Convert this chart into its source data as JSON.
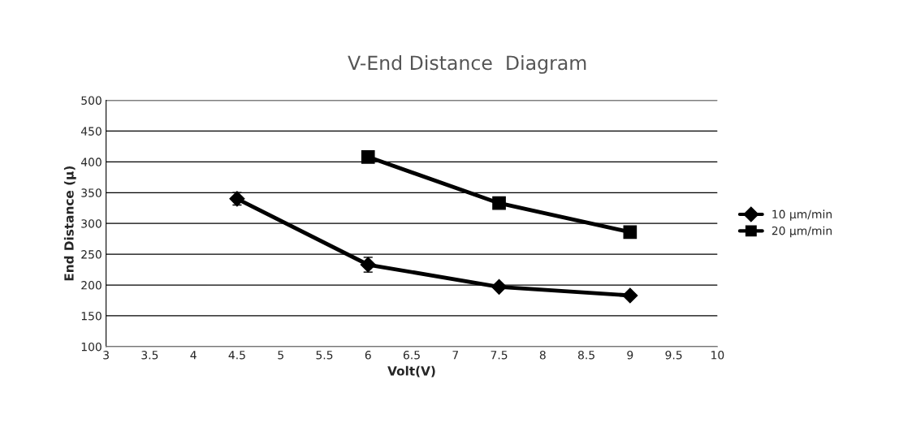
{
  "chart_data": {
    "type": "line",
    "title": "V-End Distance  Diagram",
    "xlabel": "Volt(V)",
    "ylabel": "End Distance (µ)",
    "xlim": [
      3,
      10
    ],
    "xticks": [
      3,
      3.5,
      4,
      4.5,
      5,
      5.5,
      6,
      6.5,
      7,
      7.5,
      8,
      8.5,
      9,
      9.5,
      10
    ],
    "ylim": [
      100,
      500
    ],
    "yticks": [
      100,
      150,
      200,
      250,
      300,
      350,
      400,
      450,
      500
    ],
    "grid": "y",
    "legend": "right",
    "series": [
      {
        "name": "10 µm/min",
        "color": "#000000",
        "marker": "diamond",
        "x": [
          4.5,
          6,
          7.5,
          9
        ],
        "values": [
          340,
          233,
          197,
          183
        ],
        "errors": [
          10,
          12,
          null,
          null
        ]
      },
      {
        "name": "20 µm/min",
        "color": "#000000",
        "marker": "square",
        "x": [
          6,
          7.5,
          9
        ],
        "values": [
          408,
          333,
          286
        ]
      }
    ]
  }
}
